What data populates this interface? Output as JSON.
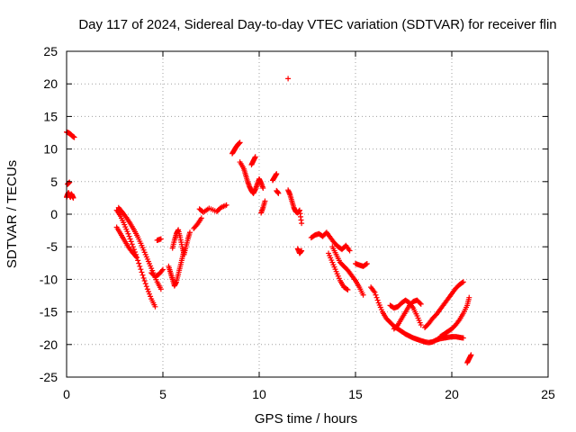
{
  "chart_data": {
    "type": "scatter",
    "title": "Day 117 of 2024, Sidereal Day-to-day VTEC variation (SDTVAR) for receiver flin",
    "xlabel": "GPS time / hours",
    "ylabel": "SDTVAR / TECUs",
    "xlim": [
      0,
      25
    ],
    "ylim": [
      -25,
      25
    ],
    "xticks": [
      0,
      5,
      10,
      15,
      20,
      25
    ],
    "yticks": [
      -25,
      -20,
      -15,
      -10,
      -5,
      0,
      5,
      10,
      15,
      20,
      25
    ],
    "grid": true,
    "marker": "+",
    "color": "#ff0000",
    "segments": [
      {
        "x": [
          0.0,
          0.1,
          0.2,
          0.3,
          0.4
        ],
        "y": [
          12.6,
          12.5,
          12.3,
          12.0,
          11.8
        ]
      },
      {
        "x": [
          0.0,
          0.05,
          0.1,
          0.15,
          0.2,
          0.25,
          0.3,
          0.35
        ],
        "y": [
          2.6,
          3.0,
          3.3,
          2.9,
          2.6,
          3.1,
          2.8,
          2.5
        ]
      },
      {
        "x": [
          0.05,
          0.15
        ],
        "y": [
          4.6,
          4.9
        ]
      },
      {
        "x": [
          2.6,
          2.8,
          3.0,
          3.2,
          3.4,
          3.6,
          3.8,
          4.0,
          4.2,
          4.4,
          4.6
        ],
        "y": [
          0.6,
          -0.3,
          -1.6,
          -3.0,
          -4.6,
          -6.2,
          -8.0,
          -9.8,
          -11.5,
          -13.0,
          -14.2
        ]
      },
      {
        "x": [
          2.7,
          2.9,
          3.1,
          3.3,
          3.5,
          3.7,
          3.9,
          4.1,
          4.3,
          4.5,
          4.7,
          4.9
        ],
        "y": [
          1.0,
          0.3,
          -0.5,
          -1.4,
          -2.4,
          -3.5,
          -4.8,
          -6.2,
          -7.6,
          -9.0,
          -10.4,
          -11.5
        ]
      },
      {
        "x": [
          2.6,
          2.8,
          3.0,
          3.2,
          3.4,
          3.6
        ],
        "y": [
          -2.0,
          -3.0,
          -4.0,
          -5.0,
          -5.8,
          -6.5
        ]
      },
      {
        "x": [
          4.4,
          4.6,
          4.8,
          5.0
        ],
        "y": [
          -9.0,
          -9.6,
          -9.2,
          -8.5
        ]
      },
      {
        "x": [
          4.7,
          4.9
        ],
        "y": [
          -4.0,
          -3.8
        ]
      },
      {
        "x": [
          5.3,
          5.4,
          5.5,
          5.6,
          5.7,
          5.8,
          5.9,
          6.0,
          6.1
        ],
        "y": [
          -8.0,
          -9.0,
          -10.0,
          -11.0,
          -10.4,
          -9.2,
          -8.0,
          -6.8,
          -5.5
        ]
      },
      {
        "x": [
          5.5,
          5.6,
          5.7,
          5.8,
          5.9,
          6.0,
          6.1,
          6.2,
          6.3,
          6.4
        ],
        "y": [
          -5.2,
          -4.0,
          -3.0,
          -2.4,
          -3.6,
          -5.0,
          -6.2,
          -5.0,
          -3.8,
          -2.8
        ]
      },
      {
        "x": [
          6.6,
          6.8,
          7.0
        ],
        "y": [
          -2.2,
          -1.5,
          -0.6
        ]
      },
      {
        "x": [
          6.9,
          7.1,
          7.4,
          7.8,
          8.0,
          8.3
        ],
        "y": [
          0.8,
          0.3,
          0.9,
          0.4,
          1.0,
          1.4
        ]
      },
      {
        "x": [
          8.6,
          8.7,
          8.8,
          8.9,
          9.0
        ],
        "y": [
          9.3,
          9.8,
          10.3,
          10.7,
          11.0
        ]
      },
      {
        "x": [
          9.0,
          9.2,
          9.3,
          9.4,
          9.5,
          9.6,
          9.7,
          9.8,
          9.9,
          10.0,
          10.1,
          10.2
        ],
        "y": [
          8.0,
          7.0,
          6.0,
          5.0,
          4.2,
          3.6,
          3.2,
          3.8,
          4.6,
          5.4,
          4.8,
          4.0
        ]
      },
      {
        "x": [
          9.6,
          9.7,
          9.8
        ],
        "y": [
          7.6,
          8.2,
          8.8
        ]
      },
      {
        "x": [
          10.1,
          10.2,
          10.3
        ],
        "y": [
          0.2,
          1.0,
          2.0
        ]
      },
      {
        "x": [
          10.7,
          10.8,
          10.9
        ],
        "y": [
          5.2,
          5.7,
          6.2
        ]
      },
      {
        "x": [
          10.9,
          11.0
        ],
        "y": [
          3.6,
          3.2
        ]
      },
      {
        "x": [
          11.5
        ],
        "y": [
          20.8
        ]
      },
      {
        "x": [
          11.5,
          11.6,
          11.7,
          11.8,
          11.9,
          12.0,
          12.1,
          12.2
        ],
        "y": [
          3.7,
          3.0,
          2.0,
          1.0,
          0.4,
          0.2,
          0.6,
          -1.4
        ]
      },
      {
        "x": [
          12.0,
          12.1,
          12.2
        ],
        "y": [
          -5.3,
          -6.0,
          -5.6
        ]
      },
      {
        "x": [
          12.7,
          12.9,
          13.1,
          13.3,
          13.5,
          13.7,
          13.9,
          14.1,
          14.3,
          14.5,
          14.7
        ],
        "y": [
          -3.6,
          -3.2,
          -3.0,
          -3.4,
          -2.8,
          -3.6,
          -4.4,
          -5.0,
          -5.4,
          -4.8,
          -5.6
        ]
      },
      {
        "x": [
          13.6,
          13.8,
          14.0,
          14.2,
          14.4,
          14.6
        ],
        "y": [
          -6.0,
          -7.4,
          -8.8,
          -10.2,
          -11.2,
          -11.6
        ]
      },
      {
        "x": [
          13.8,
          14.0,
          14.2,
          14.4,
          14.6,
          14.8,
          15.0,
          15.2,
          15.4
        ],
        "y": [
          -5.0,
          -6.2,
          -7.4,
          -8.0,
          -8.6,
          -9.4,
          -10.2,
          -11.2,
          -12.4
        ]
      },
      {
        "x": [
          15.0,
          15.2,
          15.4,
          15.6
        ],
        "y": [
          -7.6,
          -7.8,
          -8.0,
          -7.6
        ]
      },
      {
        "x": [
          15.8,
          16.0,
          16.2,
          16.4,
          16.6,
          16.8,
          17.0,
          17.2,
          17.4,
          17.6,
          17.8,
          18.0,
          18.2,
          18.4,
          18.6,
          18.8,
          19.0,
          19.2,
          19.4,
          19.6,
          19.8,
          20.0,
          20.2,
          20.4,
          20.6
        ],
        "y": [
          -11.2,
          -12.0,
          -13.6,
          -15.0,
          -16.0,
          -16.6,
          -17.2,
          -17.6,
          -18.0,
          -18.4,
          -18.7,
          -19.0,
          -19.2,
          -19.4,
          -19.6,
          -19.7,
          -19.6,
          -19.3,
          -19.1,
          -19.0,
          -18.9,
          -18.8,
          -18.8,
          -18.9,
          -19.0
        ]
      },
      {
        "x": [
          16.8,
          17.0,
          17.2,
          17.4,
          17.6,
          17.8,
          18.0,
          18.2,
          18.4
        ],
        "y": [
          -14.0,
          -14.4,
          -14.2,
          -13.6,
          -13.2,
          -13.6,
          -14.4,
          -15.6,
          -17.0
        ]
      },
      {
        "x": [
          17.0,
          17.2,
          17.4,
          17.6,
          17.8,
          18.0,
          18.2,
          18.4
        ],
        "y": [
          -17.6,
          -17.0,
          -16.0,
          -15.0,
          -14.0,
          -13.4,
          -13.2,
          -13.8
        ]
      },
      {
        "x": [
          18.6,
          18.8,
          19.0,
          19.2,
          19.4,
          19.6,
          19.8,
          20.0,
          20.2,
          20.4,
          20.6
        ],
        "y": [
          -17.4,
          -16.8,
          -16.0,
          -15.4,
          -14.6,
          -13.8,
          -13.0,
          -12.2,
          -11.4,
          -10.8,
          -10.4
        ]
      },
      {
        "x": [
          19.4,
          19.6,
          19.8,
          20.0,
          20.2,
          20.4,
          20.6,
          20.8,
          20.9
        ],
        "y": [
          -18.8,
          -18.4,
          -18.0,
          -17.6,
          -17.0,
          -16.2,
          -15.2,
          -14.0,
          -12.8
        ]
      },
      {
        "x": [
          20.8,
          20.9,
          21.0
        ],
        "y": [
          -22.8,
          -22.2,
          -21.6
        ]
      }
    ]
  }
}
